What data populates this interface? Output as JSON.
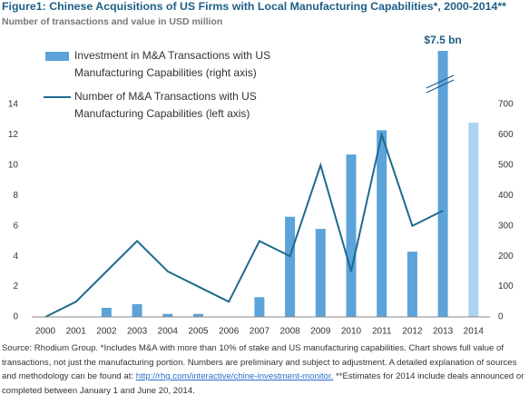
{
  "chart_data": {
    "type": "bar_line",
    "title": "Figure1: Chinese Acquisitions of US Firms with Local Manufacturing Capabilities*, 2000-2014**",
    "subtitle": "Number of transactions and value in USD million",
    "categories": [
      "2000",
      "2001",
      "2002",
      "2003",
      "2004",
      "2005",
      "2006",
      "2007",
      "2008",
      "2009",
      "2010",
      "2011",
      "2012",
      "2013",
      "2014"
    ],
    "series": [
      {
        "name": "Investment in M&A Transactions with US Manufacturing Capabilities (right axis)",
        "type": "bar",
        "axis": "y2",
        "color": "#5ba3d9",
        "colors": [
          "#5ba3d9",
          "#5ba3d9",
          "#5ba3d9",
          "#5ba3d9",
          "#5ba3d9",
          "#5ba3d9",
          "#5ba3d9",
          "#5ba3d9",
          "#5ba3d9",
          "#5ba3d9",
          "#5ba3d9",
          "#5ba3d9",
          "#5ba3d9",
          "#5ba3d9",
          "#a9d3f0"
        ],
        "values": [
          0,
          0,
          30,
          42,
          10,
          10,
          0,
          65,
          330,
          290,
          535,
          615,
          215,
          7500,
          640
        ],
        "value_labels": [
          null,
          null,
          null,
          null,
          null,
          null,
          null,
          null,
          null,
          null,
          null,
          null,
          null,
          "$7.5 bn",
          null
        ]
      },
      {
        "name": "Number of M&A Transactions with US Manufacturing Capabilities (left axis)",
        "type": "line",
        "axis": "y",
        "color": "#1d6a8c",
        "values": [
          0,
          1,
          3,
          5,
          3,
          2,
          1,
          5,
          4,
          10,
          3,
          12,
          6,
          7,
          null
        ]
      }
    ],
    "ylim": [
      0,
      14
    ],
    "yticks": [
      0,
      2,
      4,
      6,
      8,
      10,
      12,
      14
    ],
    "y2lim": [
      0,
      700
    ],
    "y2ticks": [
      0,
      100,
      200,
      300,
      400,
      500,
      600,
      700
    ],
    "grid": false,
    "source": {
      "text": "Source: Rhodium Group. *Includes M&A with more than 10% of stake and US manufacturing capabilities. Chart shows full value of transactions, not just the manufacturing portion. Numbers are preliminary and subject to adjustment. A detailed explanation of sources and methodology can be found at: ",
      "link": "http://rhg.com/interactive/chine-investment-monitor.",
      "note": " **Estimates for 2014 include deals announced or completed between January 1 and June 20, 2014."
    }
  }
}
